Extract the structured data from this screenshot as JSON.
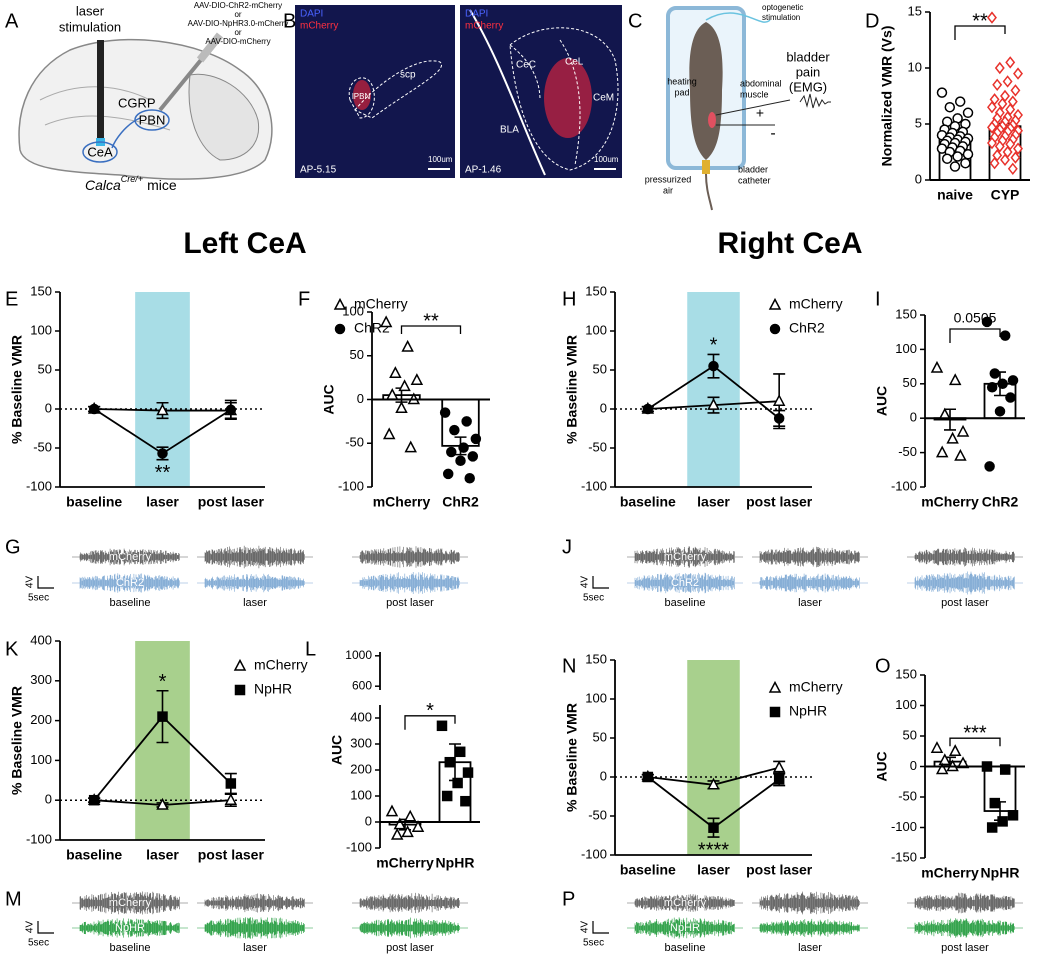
{
  "headings": [
    "Left CeA",
    "Right CeA"
  ],
  "panel_a": {
    "panel": "A",
    "laser_label": [
      "laser",
      "stimulation"
    ],
    "virus_label": [
      "AAV-DIO-ChR2-mCherry",
      "or",
      "AAV-DIO-NpHR3.0-mCherry",
      "or",
      "AAV-DIO-mCherry"
    ],
    "projection": "CGRP",
    "source": "CeA",
    "target": "PBN",
    "mouse_gene": "Calca",
    "mouse_superscript": "Cre/+",
    "mouse_suffix": "mice"
  },
  "panel_b": {
    "panel": "B",
    "images": [
      {
        "stains": [
          "DAPI",
          "mCherry"
        ],
        "regions": [
          "lPBN",
          "scp"
        ],
        "coordinate": "AP-5.15",
        "scale": "100um"
      },
      {
        "stains": [
          "DAPI",
          "mCherry"
        ],
        "regions": [
          "CeC",
          "CeL",
          "CeM",
          "BLA"
        ],
        "coordinate": "AP-1.46",
        "scale": "100um"
      }
    ]
  },
  "panel_c": {
    "panel": "C",
    "labels": [
      {
        "lines": [
          "optogenetic",
          "stimulation"
        ]
      },
      {
        "lines": [
          "heating",
          "pad"
        ]
      },
      {
        "lines": [
          "abdominal",
          "muscle"
        ]
      },
      {
        "lines": [
          "bladder",
          "pain",
          "(EMG)"
        ]
      },
      {
        "lines": [
          "+"
        ]
      },
      {
        "lines": [
          "-"
        ]
      },
      {
        "lines": [
          "pressurized",
          "air"
        ]
      },
      {
        "lines": [
          "bladder",
          "catheter"
        ]
      }
    ]
  },
  "traces": [
    {
      "panel": "G",
      "rows": [
        "mCherry",
        "ChR2"
      ],
      "colors": [
        "#5a5a5a",
        "#7aa6d2"
      ],
      "conditions": [
        "baseline",
        "laser",
        "post laser"
      ],
      "scale": [
        "4V",
        "5sec"
      ]
    },
    {
      "panel": "J",
      "rows": [
        "mCherry",
        "ChR2"
      ],
      "colors": [
        "#5a5a5a",
        "#7aa6d2"
      ],
      "conditions": [
        "baseline",
        "laser",
        "post laser"
      ],
      "scale": [
        "4V",
        "5sec"
      ]
    },
    {
      "panel": "M",
      "rows": [
        "mCherry",
        "NpHR"
      ],
      "colors": [
        "#5a5a5a",
        "#1f9a3a"
      ],
      "conditions": [
        "baseline",
        "laser",
        "post laser"
      ],
      "scale": [
        "4V",
        "5sec"
      ]
    },
    {
      "panel": "P",
      "rows": [
        "mCherry",
        "NpHR"
      ],
      "colors": [
        "#5a5a5a",
        "#1f9a3a"
      ],
      "conditions": [
        "baseline",
        "laser",
        "post laser"
      ],
      "scale": [
        "4V",
        "5sec"
      ]
    }
  ],
  "chart_data": [
    {
      "panel": "D",
      "type": "bar",
      "categories": [
        "naive",
        "CYP"
      ],
      "values": [
        3.7,
        4.8
      ],
      "errors": [
        0.2,
        0.25
      ],
      "points": [
        [
          7.8,
          7.0,
          6.5,
          6.0,
          5.5,
          5.2,
          5.0,
          4.8,
          4.5,
          4.3,
          4.2,
          4.0,
          3.9,
          3.8,
          3.7,
          3.6,
          3.5,
          3.4,
          3.3,
          3.2,
          3.0,
          2.9,
          2.8,
          2.6,
          2.5,
          2.3,
          2.1,
          1.9,
          1.5,
          1.2
        ],
        [
          14.5,
          10.5,
          10.0,
          9.5,
          8.8,
          8.5,
          8.0,
          7.5,
          7.2,
          7.0,
          6.8,
          6.5,
          6.3,
          6.0,
          5.8,
          5.6,
          5.5,
          5.3,
          5.2,
          5.0,
          4.9,
          4.8,
          4.7,
          4.6,
          4.5,
          4.4,
          4.3,
          4.2,
          4.0,
          3.9,
          3.8,
          3.6,
          3.5,
          3.3,
          3.2,
          3.0,
          2.8,
          2.5,
          2.2,
          2.0,
          1.8,
          1.5,
          1.0
        ]
      ],
      "point_markers": [
        "circle",
        "diamond"
      ],
      "point_colors": [
        "#000000",
        "#e8322c"
      ],
      "point_filled": [
        false,
        false
      ],
      "bar_color": "#ffffff",
      "y_label": "Normalized VMR (Vs)",
      "ylim": [
        0,
        15
      ],
      "yticks": [
        0,
        5,
        10,
        15
      ],
      "significance": "**"
    },
    {
      "panel": "E",
      "type": "line",
      "categories": [
        "baseline",
        "laser",
        "post laser"
      ],
      "series": [
        {
          "name": "mCherry",
          "marker": "triangle",
          "filled": false,
          "color": "#000000",
          "values": [
            0,
            -2,
            -2
          ],
          "errors": [
            3,
            10,
            10
          ]
        },
        {
          "name": "ChR2",
          "marker": "circle",
          "filled": true,
          "color": "#000000",
          "values": [
            0,
            -57,
            -1
          ],
          "errors": [
            3,
            8,
            12
          ]
        }
      ],
      "y_label": "% Baseline VMR",
      "ylim": [
        -100,
        150
      ],
      "yticks": [
        -100,
        -50,
        0,
        50,
        100,
        150
      ],
      "reference_line": 0,
      "highlight": {
        "category": 1,
        "color": "#a8dde6"
      },
      "annotation": {
        "text": "**",
        "category": 1,
        "placement": "below"
      }
    },
    {
      "panel": "F",
      "type": "bar",
      "categories": [
        "mCherry",
        "ChR2"
      ],
      "values": [
        5,
        -53
      ],
      "errors": [
        8,
        10
      ],
      "points": [
        [
          88,
          60,
          30,
          22,
          15,
          5,
          0,
          -10,
          -40,
          -55
        ],
        [
          -15,
          -25,
          -35,
          -45,
          -55,
          -60,
          -65,
          -70,
          -85,
          -90
        ]
      ],
      "point_markers": [
        "triangle",
        "circle"
      ],
      "point_colors": [
        "#000000",
        "#000000"
      ],
      "point_filled": [
        false,
        true
      ],
      "bar_color": "#ffffff",
      "y_label": "AUC",
      "ylim": [
        -100,
        100
      ],
      "yticks": [
        -100,
        -50,
        0,
        50,
        100
      ],
      "significance": "**"
    },
    {
      "panel": "H",
      "type": "line",
      "categories": [
        "baseline",
        "laser",
        "post laser"
      ],
      "series": [
        {
          "name": "mCherry",
          "marker": "triangle",
          "filled": false,
          "color": "#000000",
          "values": [
            0,
            5,
            10
          ],
          "errors": [
            3,
            10,
            35
          ]
        },
        {
          "name": "ChR2",
          "marker": "circle",
          "filled": true,
          "color": "#000000",
          "values": [
            0,
            55,
            -12
          ],
          "errors": [
            3,
            15,
            10
          ]
        }
      ],
      "y_label": "% Baseline VMR",
      "ylim": [
        -100,
        150
      ],
      "yticks": [
        -100,
        -50,
        0,
        50,
        100,
        150
      ],
      "reference_line": 0,
      "highlight": {
        "category": 1,
        "color": "#a8dde6"
      },
      "annotation": {
        "text": "*",
        "category": 1,
        "placement": "above"
      }
    },
    {
      "panel": "I",
      "type": "bar",
      "categories": [
        "mCherry",
        "ChR2"
      ],
      "values": [
        -2,
        50
      ],
      "errors": [
        15,
        17
      ],
      "points": [
        [
          73,
          55,
          5,
          -20,
          -30,
          -50,
          -55
        ],
        [
          140,
          120,
          65,
          55,
          50,
          45,
          30,
          10,
          -70
        ]
      ],
      "point_markers": [
        "triangle",
        "circle"
      ],
      "point_colors": [
        "#000000",
        "#000000"
      ],
      "point_filled": [
        false,
        true
      ],
      "bar_color": "#ffffff",
      "y_label": "AUC",
      "ylim": [
        -100,
        150
      ],
      "yticks": [
        -100,
        -50,
        0,
        50,
        100,
        150
      ],
      "significance": "0.0505"
    },
    {
      "panel": "K",
      "type": "line",
      "categories": [
        "baseline",
        "laser",
        "post laser"
      ],
      "series": [
        {
          "name": "mCherry",
          "marker": "triangle",
          "filled": false,
          "color": "#000000",
          "values": [
            0,
            -12,
            0
          ],
          "errors": [
            5,
            5,
            15
          ]
        },
        {
          "name": "NpHR",
          "marker": "square",
          "filled": true,
          "color": "#000000",
          "values": [
            0,
            210,
            42
          ],
          "errors": [
            5,
            65,
            25
          ]
        }
      ],
      "y_label": "% Baseline VMR",
      "ylim": [
        -100,
        400
      ],
      "yticks": [
        -100,
        0,
        100,
        200,
        300,
        400
      ],
      "reference_line": 0,
      "highlight": {
        "category": 1,
        "color": "#a8d08d"
      },
      "annotation": {
        "text": "*",
        "category": 1,
        "placement": "above"
      }
    },
    {
      "panel": "L",
      "type": "bar",
      "categories": [
        "mCherry",
        "NpHR"
      ],
      "values": [
        -10,
        230
      ],
      "errors": [
        20,
        70
      ],
      "points": [
        [
          40,
          20,
          -10,
          -20,
          -40,
          -50
        ],
        [
          370,
          270,
          230,
          190,
          150,
          100,
          80
        ]
      ],
      "point_markers": [
        "triangle",
        "square"
      ],
      "point_colors": [
        "#000000",
        "#000000"
      ],
      "point_filled": [
        false,
        true
      ],
      "bar_color": "#ffffff",
      "y_label": "AUC",
      "ylim": [
        -100,
        450
      ],
      "yticks": [
        -100,
        0,
        100,
        200,
        300,
        400
      ],
      "ylim_upper": [
        550,
        1050
      ],
      "yticks_upper": [
        600,
        1000
      ],
      "significance": "*"
    },
    {
      "panel": "N",
      "type": "line",
      "categories": [
        "baseline",
        "laser",
        "post laser"
      ],
      "series": [
        {
          "name": "mCherry",
          "marker": "triangle",
          "filled": false,
          "color": "#000000",
          "values": [
            0,
            -10,
            12
          ],
          "errors": [
            3,
            5,
            8
          ]
        },
        {
          "name": "NpHR",
          "marker": "square",
          "filled": true,
          "color": "#000000",
          "values": [
            0,
            -65,
            -3
          ],
          "errors": [
            3,
            12,
            8
          ]
        }
      ],
      "y_label": "% Baseline VMR",
      "ylim": [
        -100,
        150
      ],
      "yticks": [
        -100,
        -50,
        0,
        50,
        100,
        150
      ],
      "reference_line": 0,
      "highlight": {
        "category": 1,
        "color": "#a8d08d"
      },
      "annotation": {
        "text": "****",
        "category": 1,
        "placement": "below"
      }
    },
    {
      "panel": "O",
      "type": "bar",
      "categories": [
        "mCherry",
        "NpHR"
      ],
      "values": [
        8,
        -73
      ],
      "errors": [
        7,
        15
      ],
      "points": [
        [
          30,
          25,
          10,
          5,
          0,
          -5
        ],
        [
          0,
          -5,
          -60,
          -80,
          -90,
          -100
        ]
      ],
      "point_markers": [
        "triangle",
        "square"
      ],
      "point_colors": [
        "#000000",
        "#000000"
      ],
      "point_filled": [
        false,
        true
      ],
      "bar_color": "#ffffff",
      "y_label": "AUC",
      "ylim": [
        -150,
        150
      ],
      "yticks": [
        -150,
        -100,
        -50,
        0,
        50,
        100,
        150
      ],
      "significance": "***"
    }
  ]
}
